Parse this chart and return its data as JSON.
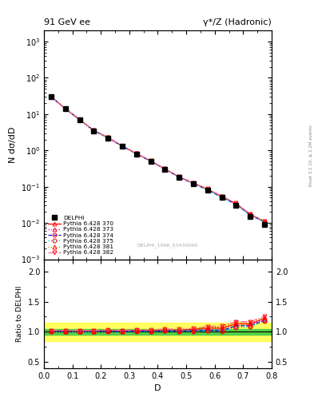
{
  "title_left": "91 GeV ee",
  "title_right": "γ*/Z (Hadronic)",
  "xlabel": "D",
  "ylabel_main": "N dσ/dD",
  "ylabel_ratio": "Ratio to DELPHI",
  "right_label": "Rivet 3.1.10, ≥ 2.2M events",
  "watermark": "DELPHI_1996_S3430090",
  "ref_label": "DELPHI",
  "mc_labels": [
    "Pythia 6.428 370",
    "Pythia 6.428 373",
    "Pythia 6.428 374",
    "Pythia 6.428 375",
    "Pythia 6.428 381",
    "Pythia 6.428 382"
  ],
  "mc_colors": [
    "#ff0000",
    "#cc00cc",
    "#0000ff",
    "#00cccc",
    "#cc8800",
    "#ff6688"
  ],
  "mc_styles": [
    "-",
    ":",
    "--",
    ":",
    ":",
    "-."
  ],
  "mc_markers": [
    "^",
    "^",
    "o",
    "o",
    "^",
    "v"
  ],
  "ref_x": [
    0.025,
    0.075,
    0.125,
    0.175,
    0.225,
    0.275,
    0.325,
    0.375,
    0.425,
    0.475,
    0.525,
    0.575,
    0.625,
    0.675,
    0.725,
    0.775
  ],
  "ref_y": [
    30.0,
    14.0,
    7.0,
    3.5,
    2.2,
    1.3,
    0.8,
    0.5,
    0.3,
    0.18,
    0.12,
    0.08,
    0.05,
    0.03,
    0.015,
    0.009
  ],
  "ref_yerr": [
    1.5,
    0.7,
    0.35,
    0.18,
    0.11,
    0.065,
    0.04,
    0.025,
    0.015,
    0.009,
    0.006,
    0.004,
    0.0025,
    0.0015,
    0.00075,
    0.00045
  ],
  "mc_y_370": [
    30.5,
    14.2,
    7.1,
    3.55,
    2.25,
    1.32,
    0.82,
    0.51,
    0.31,
    0.185,
    0.125,
    0.085,
    0.053,
    0.034,
    0.017,
    0.011
  ],
  "mc_y_373": [
    30.4,
    14.15,
    7.08,
    3.53,
    2.24,
    1.31,
    0.815,
    0.508,
    0.308,
    0.183,
    0.123,
    0.083,
    0.052,
    0.033,
    0.0168,
    0.0108
  ],
  "mc_y_374": [
    30.3,
    14.1,
    7.05,
    3.52,
    2.23,
    1.305,
    0.81,
    0.505,
    0.306,
    0.182,
    0.122,
    0.082,
    0.051,
    0.033,
    0.0165,
    0.0107
  ],
  "mc_y_375": [
    30.2,
    14.05,
    7.02,
    3.51,
    2.22,
    1.3,
    0.805,
    0.502,
    0.304,
    0.181,
    0.121,
    0.081,
    0.0505,
    0.032,
    0.0163,
    0.0106
  ],
  "mc_y_381": [
    30.6,
    14.25,
    7.12,
    3.56,
    2.26,
    1.325,
    0.825,
    0.512,
    0.312,
    0.186,
    0.126,
    0.086,
    0.054,
    0.035,
    0.0172,
    0.0112
  ],
  "mc_y_382": [
    30.7,
    14.3,
    7.15,
    3.58,
    2.27,
    1.33,
    0.828,
    0.515,
    0.314,
    0.187,
    0.127,
    0.087,
    0.055,
    0.035,
    0.0175,
    0.0113
  ],
  "ylim_main": [
    0.001,
    2000
  ],
  "ylim_ratio": [
    0.4,
    2.2
  ],
  "xlim": [
    0.0,
    0.8
  ],
  "ratio_yticks": [
    0.5,
    1.0,
    1.5,
    2.0
  ],
  "green_band_inner": 0.05,
  "green_band_outer": 0.15,
  "background_color": "#ffffff"
}
